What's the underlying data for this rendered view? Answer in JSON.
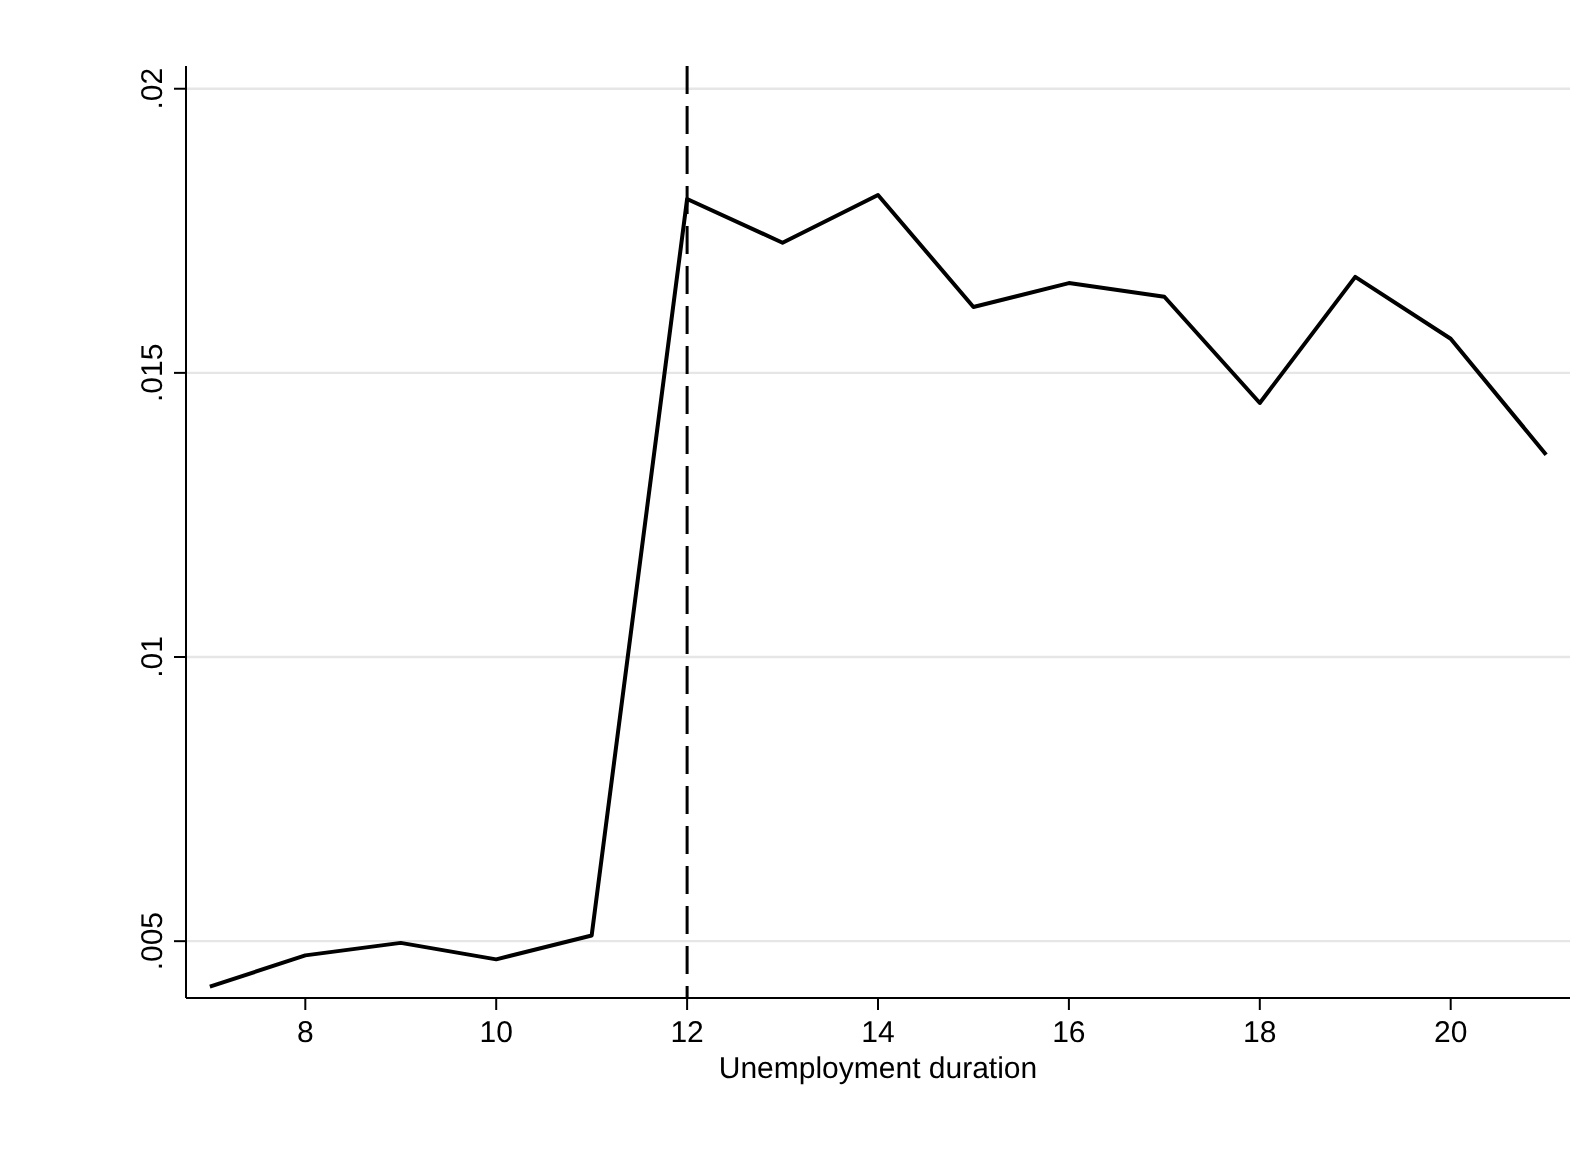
{
  "chart_data": {
    "type": "line",
    "xlabel": "Unemployment duration",
    "x": [
      7,
      8,
      9,
      10,
      11,
      12,
      13,
      14,
      15,
      16,
      17,
      18,
      19,
      20,
      21
    ],
    "series": [
      {
        "color": "#000000",
        "values": [
          0.0042,
          0.00475,
          0.00497,
          0.00468,
          0.0051,
          0.01806,
          0.01729,
          0.01813,
          0.01616,
          0.01658,
          0.01634,
          0.01447,
          0.01669,
          0.0156,
          0.01356
        ]
      }
    ],
    "xlim": [
      6.75,
      21.25
    ],
    "xticks": [
      8,
      10,
      12,
      14,
      16,
      18,
      20
    ],
    "ylim": [
      0.004,
      0.0204
    ],
    "yticks": [
      {
        "value": 0.005,
        "label": ".005"
      },
      {
        "value": 0.01,
        "label": ".01"
      },
      {
        "value": 0.015,
        "label": ".015"
      },
      {
        "value": 0.02,
        "label": ".02"
      }
    ],
    "grid": "y",
    "ref_lines": [
      {
        "axis": "x",
        "value": 12,
        "color": "#000000",
        "line_style": "dashed"
      }
    ]
  }
}
